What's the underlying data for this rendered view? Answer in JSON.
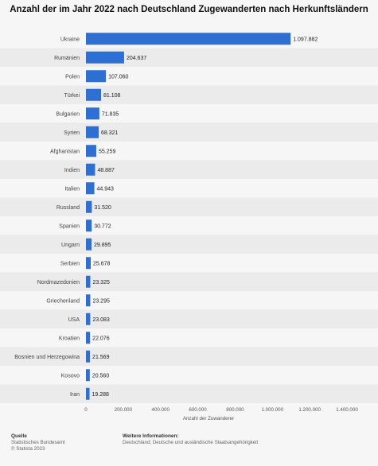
{
  "title": "Anzahl der im Jahr 2022 nach Deutschland Zugewanderten nach Herkunftsländern",
  "footer": {
    "source_head": "Quelle",
    "source_name": "Statistisches Bundesamt",
    "copyright": "© Statista 2023",
    "info_head": "Weitere Informationen:",
    "info_text": "Deutschland; Deutsche und ausländische Staatsangehörigkeit"
  },
  "colors": {
    "bar": "#2d6fd2",
    "stripe": "#ebebeb",
    "axis_text": "#555555"
  },
  "chart_data": {
    "type": "bar",
    "orientation": "horizontal",
    "categories": [
      "Ukraine",
      "Rumänien",
      "Polen",
      "Türkei",
      "Bulgarien",
      "Syrien",
      "Afghanistan",
      "Indien",
      "Italien",
      "Russland",
      "Spanien",
      "Ungarn",
      "Serbien",
      "Nordmazedonien",
      "Griechenland",
      "USA",
      "Kroatien",
      "Bosnien und Herzegowina",
      "Kosovo",
      "Iran"
    ],
    "values": [
      1097882,
      204637,
      107060,
      81108,
      71835,
      68321,
      55259,
      48887,
      44943,
      31520,
      30772,
      29895,
      25678,
      23325,
      23295,
      23083,
      22076,
      21569,
      20560,
      19288
    ],
    "value_labels": [
      "1.097.882",
      "204.637",
      "107.060",
      "81.108",
      "71.835",
      "68.321",
      "55.259",
      "48.887",
      "44.943",
      "31.520",
      "30.772",
      "29.895",
      "25.678",
      "23.325",
      "23.295",
      "23.083",
      "22.076",
      "21.569",
      "20.560",
      "19.288"
    ],
    "xlabel": "Anzahl der Zuwanderer",
    "xlim": [
      0,
      1400000
    ],
    "ticks": [
      0,
      200000,
      400000,
      600000,
      800000,
      1000000,
      1200000,
      1400000
    ],
    "tick_labels": [
      "0",
      "200.000",
      "400.000",
      "600.000",
      "800.000",
      "1.000.000",
      "1.200.000",
      "1.400.000"
    ],
    "grid": false
  }
}
